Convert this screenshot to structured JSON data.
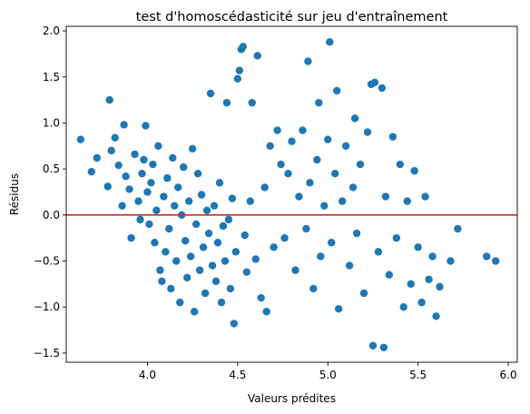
{
  "chart_data": {
    "type": "scatter",
    "title": "test d'homoscédasticité sur jeu d'entraînement",
    "xlabel": "Valeurs prédites",
    "ylabel": "Résidus",
    "xlim": [
      3.55,
      6.05
    ],
    "ylim": [
      -1.6,
      2.05
    ],
    "xticks": [
      4.0,
      4.5,
      5.0,
      5.5,
      6.0
    ],
    "xtick_labels": [
      "4.0",
      "4.5",
      "5.0",
      "5.5",
      "6.0"
    ],
    "yticks": [
      -1.5,
      -1.0,
      -0.5,
      0.0,
      0.5,
      1.0,
      1.5,
      2.0
    ],
    "ytick_labels": [
      "−1.5",
      "−1.0",
      "−0.5",
      "0.0",
      "0.5",
      "1.0",
      "1.5",
      "2.0"
    ],
    "grid": false,
    "point_color": "#1f77b4",
    "reference_line": {
      "y": 0.0,
      "color": "#d62728"
    },
    "series": [
      {
        "values": [
          [
            3.63,
            0.82
          ],
          [
            3.69,
            0.47
          ],
          [
            3.72,
            0.62
          ],
          [
            3.78,
            0.31
          ],
          [
            3.79,
            1.25
          ],
          [
            3.8,
            0.7
          ],
          [
            3.82,
            0.84
          ],
          [
            3.84,
            0.54
          ],
          [
            3.86,
            0.1
          ],
          [
            3.87,
            0.98
          ],
          [
            3.88,
            0.42
          ],
          [
            3.9,
            0.28
          ],
          [
            3.91,
            -0.25
          ],
          [
            3.93,
            0.66
          ],
          [
            3.95,
            0.15
          ],
          [
            3.96,
            -0.05
          ],
          [
            3.97,
            0.45
          ],
          [
            3.98,
            0.6
          ],
          [
            3.99,
            0.97
          ],
          [
            4.0,
            0.25
          ],
          [
            4.01,
            -0.1
          ],
          [
            4.02,
            0.35
          ],
          [
            4.03,
            0.55
          ],
          [
            4.04,
            -0.3
          ],
          [
            4.05,
            0.05
          ],
          [
            4.06,
            0.75
          ],
          [
            4.07,
            -0.6
          ],
          [
            4.08,
            -0.72
          ],
          [
            4.09,
            0.2
          ],
          [
            4.1,
            -0.4
          ],
          [
            4.11,
            0.4
          ],
          [
            4.12,
            -0.15
          ],
          [
            4.13,
            -0.8
          ],
          [
            4.14,
            0.62
          ],
          [
            4.15,
            0.1
          ],
          [
            4.16,
            -0.5
          ],
          [
            4.17,
            0.3
          ],
          [
            4.18,
            -0.95
          ],
          [
            4.19,
            0.0
          ],
          [
            4.2,
            0.52
          ],
          [
            4.21,
            -0.28
          ],
          [
            4.22,
            -0.68
          ],
          [
            4.23,
            0.15
          ],
          [
            4.24,
            -0.45
          ],
          [
            4.25,
            0.72
          ],
          [
            4.26,
            -1.05
          ],
          [
            4.27,
            -0.1
          ],
          [
            4.28,
            0.45
          ],
          [
            4.29,
            -0.6
          ],
          [
            4.3,
            0.22
          ],
          [
            4.31,
            -0.35
          ],
          [
            4.32,
            -0.85
          ],
          [
            4.33,
            0.05
          ],
          [
            4.34,
            -0.2
          ],
          [
            4.35,
            1.32
          ],
          [
            4.36,
            -0.55
          ],
          [
            4.37,
            0.1
          ],
          [
            4.38,
            -0.72
          ],
          [
            4.39,
            -0.3
          ],
          [
            4.4,
            0.35
          ],
          [
            4.41,
            -0.95
          ],
          [
            4.42,
            -0.12
          ],
          [
            4.43,
            -0.5
          ],
          [
            4.44,
            1.22
          ],
          [
            4.45,
            -0.05
          ],
          [
            4.46,
            -0.8
          ],
          [
            4.47,
            0.18
          ],
          [
            4.48,
            -1.18
          ],
          [
            4.49,
            -0.4
          ],
          [
            4.5,
            1.48
          ],
          [
            4.51,
            1.57
          ],
          [
            4.52,
            1.8
          ],
          [
            4.53,
            1.83
          ],
          [
            4.54,
            -0.22
          ],
          [
            4.55,
            -0.62
          ],
          [
            4.57,
            0.15
          ],
          [
            4.58,
            1.22
          ],
          [
            4.6,
            -0.48
          ],
          [
            4.61,
            1.73
          ],
          [
            4.63,
            -0.9
          ],
          [
            4.65,
            0.3
          ],
          [
            4.66,
            -1.05
          ],
          [
            4.68,
            0.75
          ],
          [
            4.7,
            -0.35
          ],
          [
            4.72,
            0.92
          ],
          [
            4.74,
            0.55
          ],
          [
            4.76,
            -0.25
          ],
          [
            4.78,
            0.45
          ],
          [
            4.8,
            0.8
          ],
          [
            4.82,
            -0.6
          ],
          [
            4.84,
            0.2
          ],
          [
            4.86,
            0.92
          ],
          [
            4.88,
            -0.15
          ],
          [
            4.89,
            1.67
          ],
          [
            4.9,
            0.35
          ],
          [
            4.92,
            -0.8
          ],
          [
            4.94,
            0.6
          ],
          [
            4.95,
            1.22
          ],
          [
            4.96,
            -0.45
          ],
          [
            4.98,
            0.1
          ],
          [
            5.0,
            0.82
          ],
          [
            5.01,
            1.88
          ],
          [
            5.02,
            -0.3
          ],
          [
            5.04,
            0.45
          ],
          [
            5.05,
            1.35
          ],
          [
            5.06,
            -1.02
          ],
          [
            5.08,
            0.15
          ],
          [
            5.1,
            0.75
          ],
          [
            5.12,
            -0.55
          ],
          [
            5.14,
            0.3
          ],
          [
            5.15,
            1.05
          ],
          [
            5.16,
            -0.2
          ],
          [
            5.18,
            0.55
          ],
          [
            5.2,
            -0.85
          ],
          [
            5.22,
            0.9
          ],
          [
            5.24,
            1.42
          ],
          [
            5.25,
            -1.42
          ],
          [
            5.26,
            1.44
          ],
          [
            5.28,
            -0.4
          ],
          [
            5.3,
            1.38
          ],
          [
            5.31,
            -1.44
          ],
          [
            5.32,
            0.2
          ],
          [
            5.34,
            -0.65
          ],
          [
            5.36,
            0.85
          ],
          [
            5.38,
            -0.25
          ],
          [
            5.4,
            0.55
          ],
          [
            5.42,
            -1.0
          ],
          [
            5.44,
            0.15
          ],
          [
            5.46,
            -0.75
          ],
          [
            5.48,
            0.48
          ],
          [
            5.5,
            -0.35
          ],
          [
            5.52,
            -0.95
          ],
          [
            5.54,
            0.2
          ],
          [
            5.56,
            -0.7
          ],
          [
            5.58,
            -0.45
          ],
          [
            5.6,
            -1.1
          ],
          [
            5.62,
            -0.78
          ],
          [
            5.68,
            -0.5
          ],
          [
            5.72,
            -0.15
          ],
          [
            5.88,
            -0.45
          ],
          [
            5.93,
            -0.5
          ]
        ]
      }
    ]
  }
}
